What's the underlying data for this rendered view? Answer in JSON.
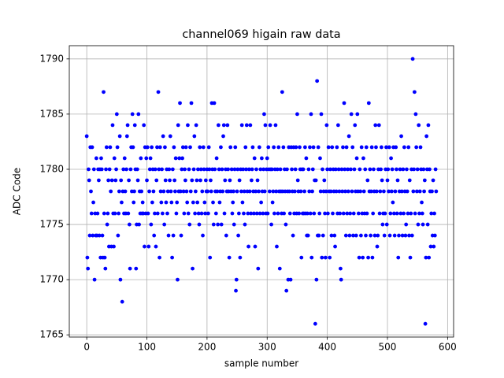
{
  "chart_data": {
    "type": "scatter",
    "title": "channel069 higain raw data",
    "x_label": "sample number",
    "y_label": "ADC Code",
    "color": "#0000ff",
    "grid": true,
    "xlim": [
      -29,
      610
    ],
    "ylim": [
      1764.8,
      1791.2
    ],
    "xticks": [
      0,
      100,
      200,
      300,
      400,
      500,
      600
    ],
    "yticks": [
      1765,
      1770,
      1775,
      1780,
      1785,
      1790
    ],
    "x": [
      0,
      1,
      2,
      3,
      4,
      5,
      6,
      7,
      8,
      9,
      10,
      11,
      12,
      13,
      14,
      15,
      16,
      17,
      18,
      19,
      20,
      21,
      22,
      23,
      24,
      25,
      26,
      27,
      28,
      29,
      30,
      31,
      32,
      33,
      34,
      35,
      36,
      37,
      38,
      39,
      40,
      41,
      42,
      43,
      44,
      45,
      46,
      47,
      48,
      49,
      50,
      51,
      52,
      53,
      54,
      55,
      56,
      57,
      58,
      59,
      60,
      61,
      62,
      63,
      64,
      65,
      66,
      67,
      68,
      69,
      70,
      71,
      72,
      73,
      74,
      75,
      76,
      77,
      78,
      79,
      80,
      81,
      82,
      83,
      84,
      85,
      86,
      87,
      88,
      89,
      90,
      91,
      92,
      93,
      94,
      95,
      96,
      97,
      98,
      99,
      100,
      101,
      102,
      103,
      104,
      105,
      106,
      107,
      108,
      109,
      110,
      111,
      112,
      113,
      114,
      115,
      116,
      117,
      118,
      119,
      120,
      121,
      122,
      123,
      124,
      125,
      126,
      127,
      128,
      129,
      130,
      131,
      132,
      133,
      134,
      135,
      136,
      137,
      138,
      139,
      140,
      141,
      142,
      143,
      144,
      145,
      146,
      147,
      148,
      149,
      150,
      151,
      152,
      153,
      154,
      155,
      156,
      157,
      158,
      159,
      160,
      161,
      162,
      163,
      164,
      165,
      166,
      167,
      168,
      169,
      170,
      171,
      172,
      173,
      174,
      175,
      176,
      177,
      178,
      179,
      180,
      181,
      182,
      183,
      184,
      185,
      186,
      187,
      188,
      189,
      190,
      191,
      192,
      193,
      194,
      195,
      196,
      197,
      198,
      199,
      200,
      201,
      202,
      203,
      204,
      205,
      206,
      207,
      208,
      209,
      210,
      211,
      212,
      213,
      214,
      215,
      216,
      217,
      218,
      219,
      220,
      221,
      222,
      223,
      224,
      225,
      226,
      227,
      228,
      229,
      230,
      231,
      232,
      233,
      234,
      235,
      236,
      237,
      238,
      239,
      240,
      241,
      242,
      243,
      244,
      245,
      246,
      247,
      248,
      249,
      250,
      251,
      252,
      253,
      254,
      255,
      256,
      257,
      258,
      259,
      260,
      261,
      262,
      263,
      264,
      265,
      266,
      267,
      268,
      269,
      270,
      271,
      272,
      273,
      274,
      275,
      276,
      277,
      278,
      279,
      280,
      281,
      282,
      283,
      284,
      285,
      286,
      287,
      288,
      289,
      290,
      291,
      292,
      293,
      294,
      295,
      296,
      297,
      298,
      299,
      300,
      301,
      302,
      303,
      304,
      305,
      306,
      307,
      308,
      309,
      310,
      311,
      312,
      313,
      314,
      315,
      316,
      317,
      318,
      319,
      320,
      321,
      322,
      323,
      324,
      325,
      326,
      327,
      328,
      329,
      330,
      331,
      332,
      333,
      334,
      335,
      336,
      337,
      338,
      339,
      340,
      341,
      342,
      343,
      344,
      345,
      346,
      347,
      348,
      349,
      350,
      351,
      352,
      353,
      354,
      355,
      356,
      357,
      358,
      359,
      360,
      361,
      362,
      363,
      364,
      365,
      366,
      367,
      368,
      369,
      370,
      371,
      372,
      373,
      374,
      375,
      376,
      377,
      378,
      379,
      380,
      381,
      382,
      383,
      384,
      385,
      386,
      387,
      388,
      389,
      390,
      391,
      392,
      393,
      394,
      395,
      396,
      397,
      398,
      399,
      400,
      401,
      402,
      403,
      404,
      405,
      406,
      407,
      408,
      409,
      410,
      411,
      412,
      413,
      414,
      415,
      416,
      417,
      418,
      419,
      420,
      421,
      422,
      423,
      424,
      425,
      426,
      427,
      428,
      429,
      430,
      431,
      432,
      433,
      434,
      435,
      436,
      437,
      438,
      439,
      440,
      441,
      442,
      443,
      444,
      445,
      446,
      447,
      448,
      449,
      450,
      451,
      452,
      453,
      454,
      455,
      456,
      457,
      458,
      459,
      460,
      461,
      462,
      463,
      464,
      465,
      466,
      467,
      468,
      469,
      470,
      471,
      472,
      473,
      474,
      475,
      476,
      477,
      478,
      479,
      480,
      481,
      482,
      483,
      484,
      485,
      486,
      487,
      488,
      489,
      490,
      491,
      492,
      493,
      494,
      495,
      496,
      497,
      498,
      499,
      500,
      501,
      502,
      503,
      504,
      505,
      506,
      507,
      508,
      509,
      510,
      511,
      512,
      513,
      514,
      515,
      516,
      517,
      518,
      519,
      520,
      521,
      522,
      523,
      524,
      525,
      526,
      527,
      528,
      529,
      530,
      531,
      532,
      533,
      534,
      535,
      536,
      537,
      538,
      539,
      540,
      541,
      542,
      543,
      544,
      545,
      546,
      547,
      548,
      549,
      550,
      551,
      552,
      553,
      554,
      555,
      556,
      557,
      558,
      559,
      560,
      561,
      562,
      563,
      564,
      565,
      566,
      567,
      568,
      569,
      570,
      571,
      572,
      573,
      574,
      575,
      576,
      577,
      578,
      579,
      580,
      581
    ],
    "values": [
      1783,
      1772,
      1771,
      1780,
      1779,
      1774,
      1782,
      1778,
      1776,
      1782,
      1774,
      1777,
      1780,
      1770,
      1776,
      1774,
      1781,
      1774,
      1776,
      1780,
      1779,
      1774,
      1780,
      1772,
      1781,
      1780,
      1774,
      1772,
      1787,
      1776,
      1772,
      1771,
      1780,
      1782,
      1775,
      1776,
      1779,
      1773,
      1780,
      1782,
      1778,
      1773,
      1779,
      1784,
      1776,
      1773,
      1781,
      1776,
      1779,
      1780,
      1785,
      1782,
      1774,
      1776,
      1778,
      1783,
      1770,
      1779,
      1777,
      1768,
      1778,
      1780,
      1776,
      1781,
      1778,
      1776,
      1780,
      1783,
      1784,
      1776,
      1779,
      1775,
      1771,
      1780,
      1782,
      1778,
      1785,
      1782,
      1777,
      1778,
      1784,
      1780,
      1771,
      1775,
      1780,
      1779,
      1785,
      1775,
      1778,
      1776,
      1781,
      1778,
      1776,
      1777,
      1776,
      1784,
      1773,
      1782,
      1776,
      1781,
      1779,
      1782,
      1776,
      1773,
      1778,
      1780,
      1781,
      1775,
      1782,
      1777,
      1780,
      1778,
      1774,
      1776,
      1780,
      1773,
      1779,
      1782,
      1776,
      1787,
      1780,
      1772,
      1782,
      1778,
      1777,
      1780,
      1776,
      1783,
      1778,
      1775,
      1782,
      1779,
      1777,
      1780,
      1776,
      1778,
      1774,
      1780,
      1779,
      1783,
      1778,
      1777,
      1772,
      1780,
      1774,
      1782,
      1779,
      1778,
      1781,
      1776,
      1777,
      1770,
      1784,
      1778,
      1781,
      1786,
      1778,
      1774,
      1780,
      1781,
      1782,
      1778,
      1776,
      1780,
      1779,
      1782,
      1778,
      1777,
      1784,
      1776,
      1780,
      1775,
      1782,
      1778,
      1786,
      1779,
      1771,
      1777,
      1780,
      1783,
      1776,
      1778,
      1784,
      1779,
      1777,
      1780,
      1776,
      1775,
      1782,
      1779,
      1780,
      1776,
      1778,
      1774,
      1782,
      1780,
      1777,
      1776,
      1779,
      1778,
      1780,
      1778,
      1776,
      1782,
      1780,
      1772,
      1779,
      1778,
      1786,
      1780,
      1777,
      1775,
      1786,
      1780,
      1778,
      1776,
      1781,
      1778,
      1775,
      1784,
      1780,
      1777,
      1778,
      1782,
      1775,
      1780,
      1778,
      1783,
      1784,
      1776,
      1779,
      1780,
      1774,
      1778,
      1784,
      1780,
      1778,
      1772,
      1779,
      1782,
      1778,
      1780,
      1776,
      1777,
      1778,
      1775,
      1780,
      1782,
      1769,
      1770,
      1778,
      1780,
      1774,
      1776,
      1779,
      1772,
      1780,
      1778,
      1784,
      1777,
      1780,
      1776,
      1778,
      1775,
      1782,
      1780,
      1784,
      1778,
      1776,
      1773,
      1780,
      1778,
      1784,
      1776,
      1779,
      1780,
      1782,
      1778,
      1776,
      1781,
      1773,
      1778,
      1780,
      1776,
      1779,
      1771,
      1778,
      1782,
      1776,
      1780,
      1777,
      1781,
      1778,
      1776,
      1780,
      1785,
      1778,
      1784,
      1776,
      1780,
      1781,
      1776,
      1782,
      1780,
      1778,
      1784,
      1780,
      1775,
      1780,
      1777,
      1778,
      1782,
      1776,
      1780,
      1784,
      1778,
      1773,
      1780,
      1776,
      1782,
      1778,
      1771,
      1780,
      1778,
      1776,
      1787,
      1778,
      1782,
      1776,
      1780,
      1778,
      1775,
      1769,
      1780,
      1778,
      1770,
      1782,
      1778,
      1776,
      1770,
      1782,
      1780,
      1778,
      1774,
      1782,
      1776,
      1778,
      1780,
      1782,
      1776,
      1785,
      1779,
      1778,
      1776,
      1782,
      1780,
      1778,
      1772,
      1780,
      1776,
      1780,
      1776,
      1778,
      1782,
      1776,
      1781,
      1774,
      1776,
      1774,
      1780,
      1778,
      1782,
      1776,
      1785,
      1772,
      1778,
      1780,
      1782,
      1776,
      1779,
      1766,
      1779,
      1770,
      1788,
      1774,
      1782,
      1774,
      1776,
      1781,
      1778,
      1785,
      1772,
      1780,
      1774,
      1778,
      1779,
      1776,
      1772,
      1778,
      1784,
      1780,
      1776,
      1782,
      1778,
      1772,
      1780,
      1778,
      1774,
      1782,
      1776,
      1780,
      1778,
      1774,
      1773,
      1780,
      1778,
      1782,
      1776,
      1784,
      1780,
      1778,
      1776,
      1771,
      1770,
      1780,
      1778,
      1782,
      1776,
      1786,
      1780,
      1778,
      1774,
      1782,
      1776,
      1780,
      1778,
      1783,
      1774,
      1776,
      1780,
      1785,
      1778,
      1782,
      1774,
      1776,
      1780,
      1784,
      1778,
      1774,
      1781,
      1785,
      1778,
      1776,
      1772,
      1780,
      1778,
      1774,
      1782,
      1776,
      1772,
      1781,
      1778,
      1776,
      1780,
      1774,
      1782,
      1776,
      1779,
      1772,
      1786,
      1778,
      1780,
      1774,
      1778,
      1782,
      1772,
      1776,
      1780,
      1778,
      1774,
      1784,
      1782,
      1778,
      1773,
      1774,
      1780,
      1784,
      1776,
      1778,
      1780,
      1782,
      1779,
      1775,
      1776,
      1778,
      1774,
      1776,
      1780,
      1782,
      1775,
      1779,
      1780,
      1778,
      1782,
      1774,
      1776,
      1781,
      1778,
      1780,
      1777,
      1782,
      1776,
      1774,
      1778,
      1782,
      1780,
      1776,
      1779,
      1772,
      1774,
      1778,
      1780,
      1776,
      1783,
      1778,
      1774,
      1780,
      1776,
      1782,
      1778,
      1774,
      1775,
      1780,
      1778,
      1776,
      1782,
      1774,
      1779,
      1772,
      1776,
      1780,
      1774,
      1790,
      1778,
      1780,
      1787,
      1776,
      1785,
      1782,
      1778,
      1780,
      1775,
      1784,
      1776,
      1778,
      1782,
      1780,
      1777,
      1776,
      1775,
      1780,
      1778,
      1779,
      1766,
      1772,
      1783,
      1780,
      1775,
      1784,
      1772,
      1780,
      1778,
      1773,
      1776,
      1778,
      1774,
      1779,
      1773,
      1776,
      1774,
      1780,
      1778
    ]
  }
}
